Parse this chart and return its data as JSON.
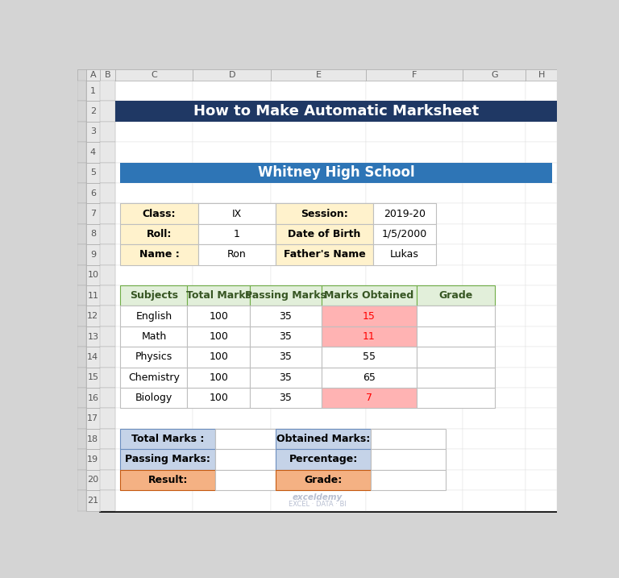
{
  "title": "How to Make Automatic Marksheet",
  "title_bg": "#1F3864",
  "title_color": "#FFFFFF",
  "school_name": "Whitney High School",
  "school_bg": "#2E75B6",
  "school_color": "#FFFFFF",
  "info_label_bg": "#FFF2CC",
  "info_data": [
    [
      "Class:",
      "IX",
      "Session:",
      "2019-20"
    ],
    [
      "Roll:",
      "1",
      "Date of Birth",
      "1/5/2000"
    ],
    [
      "Name :",
      "Ron",
      "Father's Name",
      "Lukas"
    ]
  ],
  "subject_header_bg": "#E2EFDA",
  "subject_header_color": "#375623",
  "subject_header_border": "#70AD47",
  "subjects": [
    "English",
    "Math",
    "Physics",
    "Chemistry",
    "Biology"
  ],
  "total_marks": [
    100,
    100,
    100,
    100,
    100
  ],
  "passing_marks": [
    35,
    35,
    35,
    35,
    35
  ],
  "marks_obtained": [
    15,
    11,
    55,
    65,
    7
  ],
  "fail_bg": "#FFB3B3",
  "fail_color": "#FF0000",
  "passing_threshold": 35,
  "summary_label_bg": "#C5D3E8",
  "summary_label_border": "#6C8EBF",
  "summary_result_bg": "#F4B183",
  "summary_result_border": "#C55A11",
  "bg_color": "#D4D4D4",
  "header_bg": "#E8E8E8",
  "cell_line_color": "#BFBFBF",
  "watermark_line1": "exceldemy",
  "watermark_line2": "EXCEL · DATA · BI"
}
